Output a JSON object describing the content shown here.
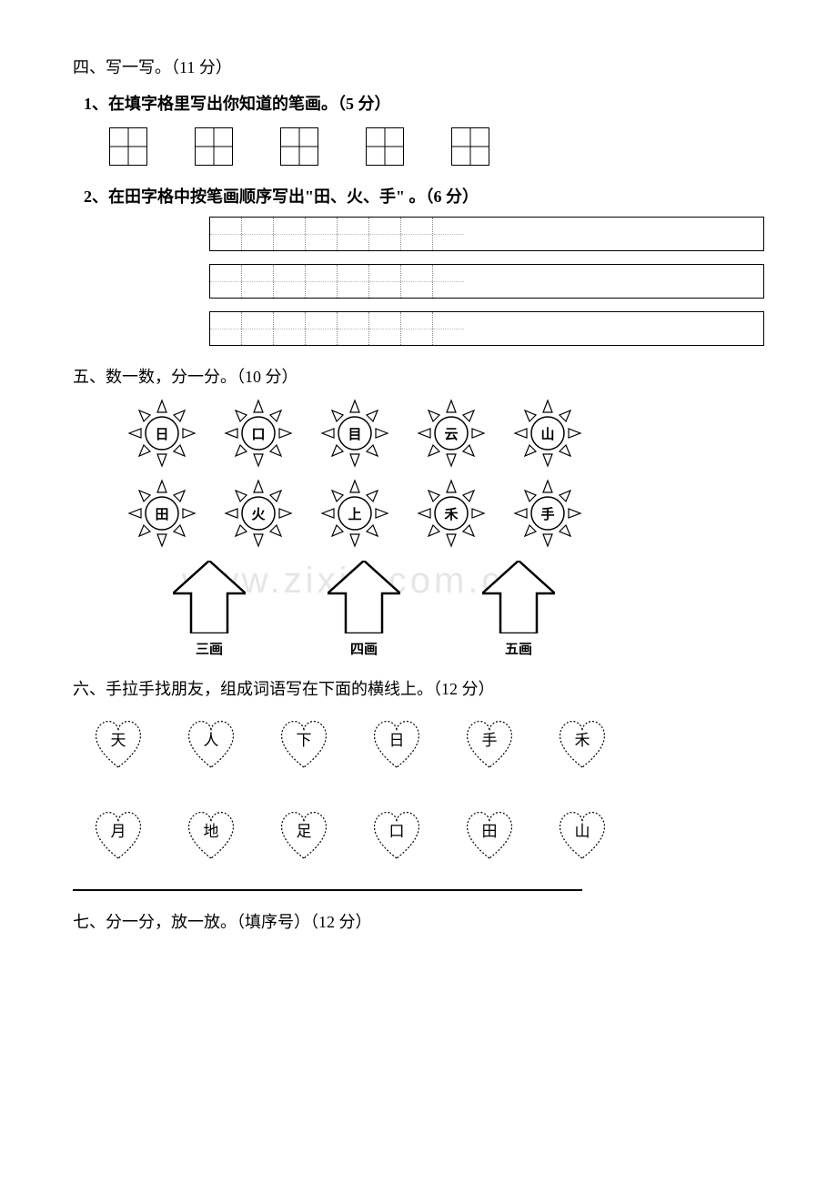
{
  "watermark": "www.zixin.com.cn",
  "sec4": {
    "title": "四、写一写。（11 分）",
    "q1": "1、在填字格里写出你知道的笔画。（5 分）",
    "q2": "2、在田字格中按笔画顺序写出\"田、火、手\" 。（6 分）"
  },
  "sec5": {
    "title": "五、数一数，分一分。（10 分）",
    "row1": [
      "日",
      "口",
      "目",
      "云",
      "山"
    ],
    "row2": [
      "田",
      "火",
      "上",
      "禾",
      "手"
    ],
    "arrows": [
      "三画",
      "四画",
      "五画"
    ]
  },
  "sec6": {
    "title": "六、手拉手找朋友，组成词语写在下面的横线上。（12 分）",
    "row1": [
      "天",
      "人",
      "下",
      "日",
      "手",
      "禾"
    ],
    "row2": [
      "月",
      "地",
      "足",
      "口",
      "田",
      "山"
    ]
  },
  "sec7": {
    "title": "七、分一分，放一放。（填序号）（12 分）"
  },
  "colors": {
    "line": "#000000",
    "bg": "#ffffff"
  }
}
